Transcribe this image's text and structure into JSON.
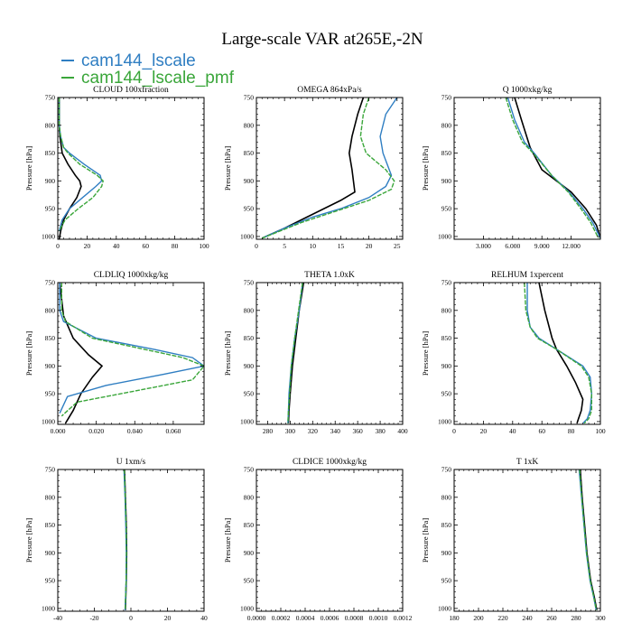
{
  "title": "Large-scale VAR at265E,-2N",
  "colors": {
    "black": "#000000",
    "cam144_lscale": "#2f7ec2",
    "cam144_lscale_pmf": "#3aa63a"
  },
  "legend": [
    {
      "label": "cam144_lscale",
      "color": "#2f7ec2"
    },
    {
      "label": "cam144_lscale_pmf",
      "color": "#3aa63a"
    }
  ],
  "chart_data": [
    {
      "type": "line",
      "title": "CLOUD 100xfraction",
      "ylabel": "Pressure [hPa]",
      "xlim": [
        0,
        100
      ],
      "ylim": [
        1005,
        750
      ],
      "xticks": [
        0,
        20,
        40,
        60,
        80,
        100
      ],
      "xticklabels": [
        "0",
        "20",
        "40",
        "60",
        "80",
        "100"
      ],
      "yticks": [
        750,
        800,
        850,
        900,
        950,
        1000
      ],
      "yticklabels": [
        "750",
        "800",
        "850",
        "900",
        "950",
        "1000"
      ],
      "series": [
        {
          "color": "#000000",
          "x": [
            1,
            1,
            1.5,
            3,
            7,
            12,
            15,
            16,
            13,
            8,
            4,
            2,
            1
          ],
          "y": [
            750,
            800,
            820,
            850,
            870,
            890,
            900,
            910,
            930,
            950,
            970,
            990,
            1005
          ]
        },
        {
          "color": "#2f7ec2",
          "name": "cam144_lscale",
          "x": [
            1,
            1,
            2,
            4,
            8,
            18,
            29,
            30,
            26,
            17,
            8,
            3,
            1
          ],
          "y": [
            750,
            800,
            820,
            840,
            850,
            870,
            890,
            900,
            910,
            930,
            950,
            970,
            990
          ]
        },
        {
          "color": "#3aa63a",
          "name": "cam144_lscale_pmf",
          "dashed": true,
          "x": [
            1,
            1,
            2,
            4,
            7,
            15,
            27,
            31,
            30,
            24,
            14,
            5,
            1
          ],
          "y": [
            750,
            800,
            820,
            840,
            850,
            870,
            890,
            900,
            910,
            930,
            950,
            970,
            990
          ]
        }
      ]
    },
    {
      "type": "line",
      "title": "OMEGA 864xPa/s",
      "ylabel": "Pressure [hPa]",
      "xlim": [
        0,
        26
      ],
      "ylim": [
        1005,
        750
      ],
      "xticks": [
        0,
        5,
        10,
        15,
        20,
        25
      ],
      "xticklabels": [
        "0",
        "5",
        "10",
        "15",
        "20",
        "25"
      ],
      "yticks": [
        750,
        800,
        850,
        900,
        950,
        1000
      ],
      "yticklabels": [
        "750",
        "800",
        "850",
        "900",
        "950",
        "1000"
      ],
      "series": [
        {
          "color": "#000000",
          "x": [
            19,
            18,
            17,
            16.5,
            17,
            17.5,
            15,
            12,
            9,
            5,
            1
          ],
          "y": [
            750,
            780,
            820,
            850,
            880,
            920,
            935,
            950,
            965,
            985,
            1003
          ]
        },
        {
          "color": "#2f7ec2",
          "name": "cam144_lscale",
          "x": [
            25,
            23,
            22,
            22.5,
            24,
            23,
            20,
            15,
            10,
            5,
            1
          ],
          "y": [
            750,
            780,
            820,
            850,
            890,
            910,
            930,
            950,
            965,
            985,
            1003
          ]
        },
        {
          "color": "#3aa63a",
          "name": "cam144_lscale_pmf",
          "dashed": true,
          "x": [
            20,
            19,
            18.5,
            19.5,
            23,
            24.5,
            24,
            20,
            14,
            8,
            1
          ],
          "y": [
            750,
            780,
            820,
            850,
            880,
            900,
            915,
            935,
            955,
            975,
            1003
          ]
        }
      ]
    },
    {
      "type": "line",
      "title": "Q 1000xkg/kg",
      "ylabel": "Pressure [hPa]",
      "xlim": [
        0,
        15000
      ],
      "ylim": [
        1005,
        750
      ],
      "xticks": [
        3000,
        6000,
        9000,
        12000
      ],
      "xticklabels": [
        "3.000",
        "6.000",
        "9.000",
        "12.000"
      ],
      "yticks": [
        750,
        800,
        850,
        900,
        950,
        1000
      ],
      "yticklabels": [
        "750",
        "800",
        "850",
        "900",
        "950",
        "1000"
      ],
      "series": [
        {
          "color": "#000000",
          "x": [
            6200,
            6900,
            7800,
            9000,
            10500,
            12000,
            13500,
            14600,
            15000
          ],
          "y": [
            750,
            790,
            840,
            880,
            900,
            920,
            950,
            980,
            1003
          ]
        },
        {
          "color": "#2f7ec2",
          "name": "cam144_lscale",
          "x": [
            5500,
            6200,
            7200,
            8200,
            10000,
            11800,
            13200,
            14200,
            15000
          ],
          "y": [
            750,
            790,
            830,
            850,
            890,
            920,
            950,
            975,
            1003
          ]
        },
        {
          "color": "#3aa63a",
          "name": "cam144_lscale_pmf",
          "dashed": true,
          "x": [
            5300,
            6000,
            7000,
            8100,
            10000,
            11700,
            13000,
            14000,
            14800
          ],
          "y": [
            750,
            790,
            830,
            850,
            890,
            920,
            950,
            975,
            1003
          ]
        }
      ]
    },
    {
      "type": "line",
      "title": "CLDLIQ 1000xkg/kg",
      "ylabel": "Pressure [hPa]",
      "xlim": [
        0,
        0.076
      ],
      "ylim": [
        1005,
        750
      ],
      "xticks": [
        0,
        0.02,
        0.04,
        0.06
      ],
      "xticklabels": [
        "0.000",
        "0.020",
        "0.040",
        "0.060"
      ],
      "yticks": [
        750,
        800,
        850,
        900,
        950,
        1000
      ],
      "yticklabels": [
        "750",
        "800",
        "850",
        "900",
        "950",
        "1000"
      ],
      "series": [
        {
          "color": "#000000",
          "x": [
            0.001,
            0.003,
            0.008,
            0.016,
            0.023,
            0.018,
            0.012,
            0.008,
            0.004
          ],
          "y": [
            750,
            810,
            850,
            880,
            900,
            920,
            950,
            980,
            1003
          ]
        },
        {
          "color": "#2f7ec2",
          "name": "cam144_lscale",
          "x": [
            0.001,
            0.001,
            0.003,
            0.02,
            0.05,
            0.07,
            0.076,
            0.055,
            0.025,
            0.005,
            0.001
          ],
          "y": [
            750,
            800,
            820,
            850,
            870,
            885,
            900,
            915,
            935,
            955,
            985
          ]
        },
        {
          "color": "#3aa63a",
          "name": "cam144_lscale_pmf",
          "dashed": true,
          "x": [
            0.002,
            0.002,
            0.004,
            0.018,
            0.045,
            0.065,
            0.076,
            0.07,
            0.04,
            0.01,
            0.002
          ],
          "y": [
            750,
            800,
            820,
            850,
            870,
            885,
            900,
            925,
            945,
            965,
            990
          ]
        }
      ]
    },
    {
      "type": "line",
      "title": "THETA 1.0xK",
      "ylabel": "Pressure [hPa]",
      "xlim": [
        270,
        400
      ],
      "ylim": [
        1005,
        750
      ],
      "xticks": [
        280,
        300,
        320,
        340,
        360,
        380,
        400
      ],
      "xticklabels": [
        "280",
        "300",
        "320",
        "340",
        "360",
        "380",
        "400"
      ],
      "yticks": [
        750,
        800,
        850,
        900,
        950,
        1000
      ],
      "yticklabels": [
        "750",
        "800",
        "850",
        "900",
        "950",
        "1000"
      ],
      "series": [
        {
          "color": "#000000",
          "x": [
            312,
            308,
            305,
            302,
            300,
            299,
            298.5
          ],
          "y": [
            750,
            800,
            850,
            900,
            950,
            980,
            1003
          ]
        },
        {
          "color": "#2f7ec2",
          "name": "cam144_lscale",
          "x": [
            311,
            308,
            304,
            301,
            299,
            298.5,
            298
          ],
          "y": [
            750,
            800,
            850,
            900,
            950,
            980,
            1003
          ]
        },
        {
          "color": "#3aa63a",
          "name": "cam144_lscale_pmf",
          "dashed": true,
          "x": [
            311,
            307.5,
            304,
            301,
            299.5,
            298.5,
            298
          ],
          "y": [
            750,
            800,
            850,
            900,
            950,
            980,
            1003
          ]
        }
      ]
    },
    {
      "type": "line",
      "title": "RELHUM 1xpercent",
      "ylabel": "Pressure [hPa]",
      "xlim": [
        0,
        100
      ],
      "ylim": [
        1005,
        750
      ],
      "xticks": [
        0,
        20,
        40,
        60,
        80,
        100
      ],
      "xticklabels": [
        "0",
        "20",
        "40",
        "60",
        "80",
        "100"
      ],
      "yticks": [
        750,
        800,
        850,
        900,
        950,
        1000
      ],
      "yticklabels": [
        "750",
        "800",
        "850",
        "900",
        "950",
        "1000"
      ],
      "series": [
        {
          "color": "#000000",
          "x": [
            58,
            62,
            67,
            70,
            77,
            83,
            88,
            87,
            85,
            84
          ],
          "y": [
            750,
            800,
            850,
            870,
            900,
            930,
            960,
            980,
            995,
            1003
          ]
        },
        {
          "color": "#2f7ec2",
          "name": "cam144_lscale",
          "x": [
            50,
            50,
            52,
            58,
            70,
            88,
            93,
            94,
            93,
            91,
            88
          ],
          "y": [
            750,
            800,
            830,
            850,
            870,
            900,
            920,
            950,
            980,
            995,
            1003
          ]
        },
        {
          "color": "#3aa63a",
          "name": "cam144_lscale_pmf",
          "dashed": true,
          "x": [
            48,
            49,
            52,
            57,
            70,
            87,
            92,
            94,
            94,
            92,
            89
          ],
          "y": [
            750,
            800,
            830,
            850,
            870,
            900,
            920,
            950,
            980,
            995,
            1003
          ]
        }
      ]
    },
    {
      "type": "line",
      "title": "U 1xm/s",
      "ylabel": "Pressure [hPa]",
      "xlim": [
        -40,
        40
      ],
      "ylim": [
        1005,
        750
      ],
      "xticks": [
        -40,
        -20,
        0,
        20,
        40
      ],
      "xticklabels": [
        "-40",
        "-20",
        "0",
        "20",
        "40"
      ],
      "yticks": [
        750,
        800,
        850,
        900,
        950,
        1000
      ],
      "yticklabels": [
        "750",
        "800",
        "850",
        "900",
        "950",
        "1000"
      ],
      "series": [
        {
          "color": "#000000",
          "x": [
            -3.5,
            -3,
            -2.5,
            -2.3,
            -2.5,
            -2.8,
            -3
          ],
          "y": [
            750,
            800,
            850,
            900,
            950,
            980,
            1003
          ]
        },
        {
          "color": "#2f7ec2",
          "name": "cam144_lscale",
          "x": [
            -3.8,
            -3.2,
            -2.8,
            -2.5,
            -2.6,
            -2.9,
            -3.2
          ],
          "y": [
            750,
            800,
            850,
            900,
            950,
            980,
            1003
          ]
        },
        {
          "color": "#3aa63a",
          "name": "cam144_lscale_pmf",
          "dashed": true,
          "x": [
            -3.6,
            -3.1,
            -2.6,
            -2.4,
            -2.6,
            -2.9,
            -3.1
          ],
          "y": [
            750,
            800,
            850,
            900,
            950,
            980,
            1003
          ]
        }
      ]
    },
    {
      "type": "line",
      "title": "CLDICE 1000xkg/kg",
      "ylabel": "Pressure [hPa]",
      "xlim": [
        0,
        0.0012
      ],
      "ylim": [
        1005,
        750
      ],
      "xticks": [
        0,
        0.0002,
        0.0004,
        0.0006,
        0.0008,
        0.001,
        0.0012
      ],
      "xticklabels": [
        "0.0000",
        "0.0002",
        "0.0004",
        "0.0006",
        "0.0008",
        "0.0010",
        "0.0012"
      ],
      "yticks": [
        750,
        800,
        850,
        900,
        950,
        1000
      ],
      "yticklabels": [
        "750",
        "800",
        "850",
        "900",
        "950",
        "1000"
      ],
      "series": []
    },
    {
      "type": "line",
      "title": "T 1xK",
      "ylabel": "Pressure [hPa]",
      "xlim": [
        180,
        300
      ],
      "ylim": [
        1005,
        750
      ],
      "xticks": [
        180,
        200,
        220,
        240,
        260,
        280,
        300
      ],
      "xticklabels": [
        "180",
        "200",
        "220",
        "240",
        "260",
        "280",
        "300"
      ],
      "yticks": [
        750,
        800,
        850,
        900,
        950,
        1000
      ],
      "yticklabels": [
        "750",
        "800",
        "850",
        "900",
        "950",
        "1000"
      ],
      "series": [
        {
          "color": "#000000",
          "x": [
            283.5,
            285,
            287,
            289,
            292,
            295,
            297
          ],
          "y": [
            750,
            800,
            850,
            900,
            950,
            980,
            1003
          ]
        },
        {
          "color": "#2f7ec2",
          "name": "cam144_lscale",
          "x": [
            282.5,
            284.5,
            286.5,
            288.5,
            291.5,
            294.5,
            296.5
          ],
          "y": [
            750,
            800,
            850,
            900,
            950,
            980,
            1003
          ]
        },
        {
          "color": "#3aa63a",
          "name": "cam144_lscale_pmf",
          "dashed": true,
          "x": [
            283,
            284.7,
            286.7,
            288.7,
            291.7,
            294.7,
            296.7
          ],
          "y": [
            750,
            800,
            850,
            900,
            950,
            980,
            1003
          ]
        }
      ]
    }
  ]
}
